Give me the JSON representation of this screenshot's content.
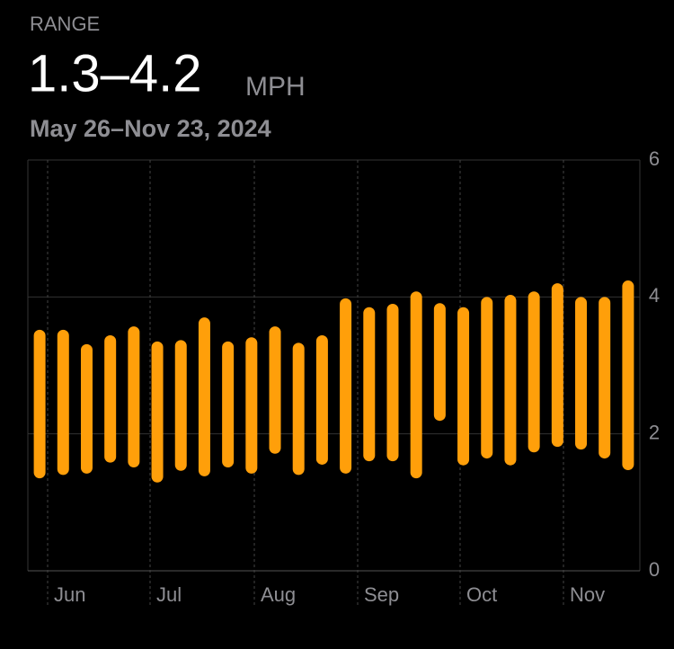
{
  "chart_data": {
    "type": "range-bar",
    "label": "RANGE",
    "headline": "1.3–4.2",
    "unit": "MPH",
    "subtitle": "May 26–Nov 23, 2024",
    "categories": [
      null,
      null,
      null,
      null,
      null,
      null,
      null,
      null,
      null,
      null,
      null,
      null,
      null,
      null,
      null,
      null,
      null,
      null,
      null,
      null,
      null,
      null,
      null,
      null,
      null,
      null
    ],
    "low": [
      1.35,
      1.4,
      1.42,
      1.58,
      1.51,
      1.29,
      1.46,
      1.38,
      1.51,
      1.42,
      1.71,
      1.4,
      1.55,
      1.42,
      1.6,
      1.6,
      1.35,
      2.19,
      1.54,
      1.64,
      1.54,
      1.73,
      1.81,
      1.77,
      1.64,
      1.47
    ],
    "high": [
      3.52,
      3.52,
      3.31,
      3.44,
      3.57,
      3.35,
      3.37,
      3.7,
      3.35,
      3.41,
      3.57,
      3.33,
      3.44,
      3.98,
      3.85,
      3.9,
      4.08,
      3.91,
      3.85,
      4.0,
      4.03,
      4.08,
      4.2,
      4.0,
      4.0,
      4.24
    ],
    "color": "#ff9f0a",
    "months": [
      "Jun",
      "Jul",
      "Aug",
      "Sep",
      "Oct",
      "Nov"
    ],
    "ylim": [
      0,
      6
    ],
    "yticks": [
      0,
      2,
      4,
      6
    ],
    "grid": true
  }
}
